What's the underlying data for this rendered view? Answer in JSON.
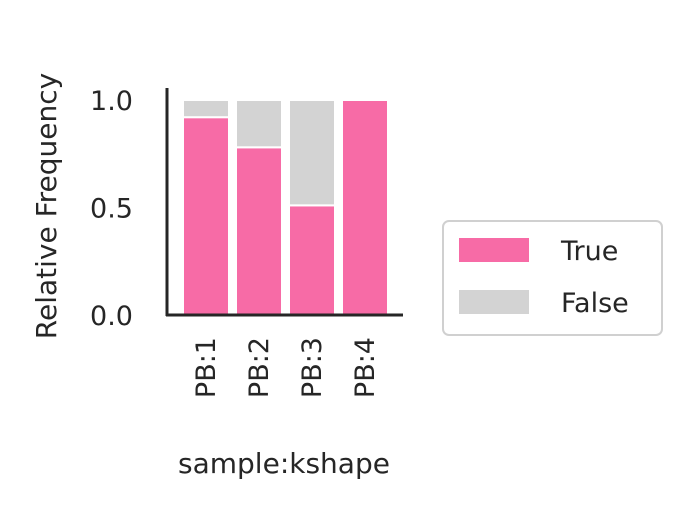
{
  "chart_data": {
    "type": "bar",
    "stacked": true,
    "normalized": true,
    "categories": [
      "PB:1",
      "PB:2",
      "PB:3",
      "PB:4"
    ],
    "series": [
      {
        "name": "True",
        "color": "#f76ba6",
        "values": [
          0.92,
          0.78,
          0.51,
          1.0
        ]
      },
      {
        "name": "False",
        "color": "#d3d3d3",
        "values": [
          0.08,
          0.22,
          0.49,
          0.0
        ]
      }
    ],
    "xlabel": "sample:kshape",
    "ylabel": "Relative Frequency",
    "ylim": [
      0,
      1.05
    ],
    "yticks": [
      0.0,
      0.5,
      1.0
    ],
    "ytick_labels": [
      "0.0",
      "0.5",
      "1.0"
    ],
    "grid": false,
    "legend_position": "right"
  }
}
